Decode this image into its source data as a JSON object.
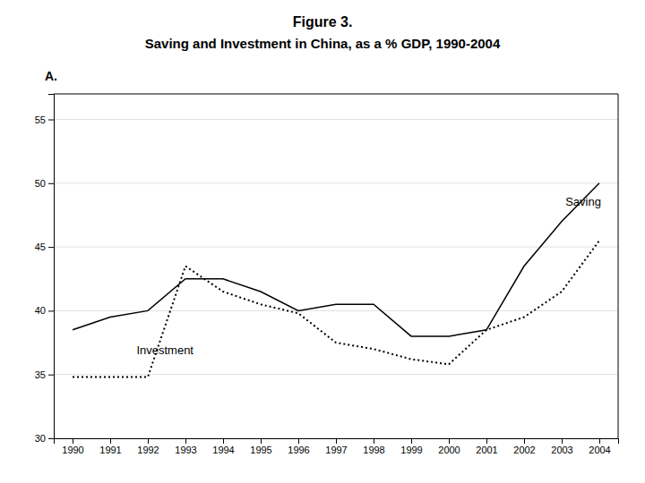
{
  "chart_data": {
    "type": "line",
    "title": "Figure 3.",
    "subtitle": "Saving and Investment in China, as a % GDP, 1990-2004",
    "x": [
      1990,
      1991,
      1992,
      1993,
      1994,
      1995,
      1996,
      1997,
      1998,
      1999,
      2000,
      2001,
      2002,
      2003,
      2004
    ],
    "series": [
      {
        "name": "Saving",
        "color": "#000000",
        "line_style": "solid",
        "values": [
          38.5,
          39.5,
          40.0,
          42.5,
          42.5,
          41.5,
          40.0,
          40.5,
          40.5,
          38.0,
          38.0,
          38.5,
          43.5,
          47.0,
          50.0
        ]
      },
      {
        "name": "Investment",
        "color": "#000000",
        "line_style": "dotted",
        "values": [
          34.8,
          34.8,
          34.8,
          43.5,
          41.5,
          40.5,
          39.8,
          37.5,
          37.0,
          36.2,
          35.8,
          38.5,
          39.5,
          41.5,
          45.5
        ]
      }
    ],
    "annotations": [
      {
        "text": "Saving",
        "x": 2003.1,
        "y": 48.5
      },
      {
        "text": "Investment",
        "x": 1991.7,
        "y": 36.8
      },
      {
        "text": "A."
      }
    ],
    "xlim": [
      1989.5,
      2004.5
    ],
    "xticks": [
      1990,
      1991,
      1992,
      1993,
      1994,
      1995,
      1996,
      1997,
      1998,
      1999,
      2000,
      2001,
      2002,
      2003,
      2004
    ],
    "ylim": [
      30,
      57
    ],
    "yticks": [
      30,
      35,
      40,
      45,
      50,
      55
    ],
    "grid": "y"
  }
}
